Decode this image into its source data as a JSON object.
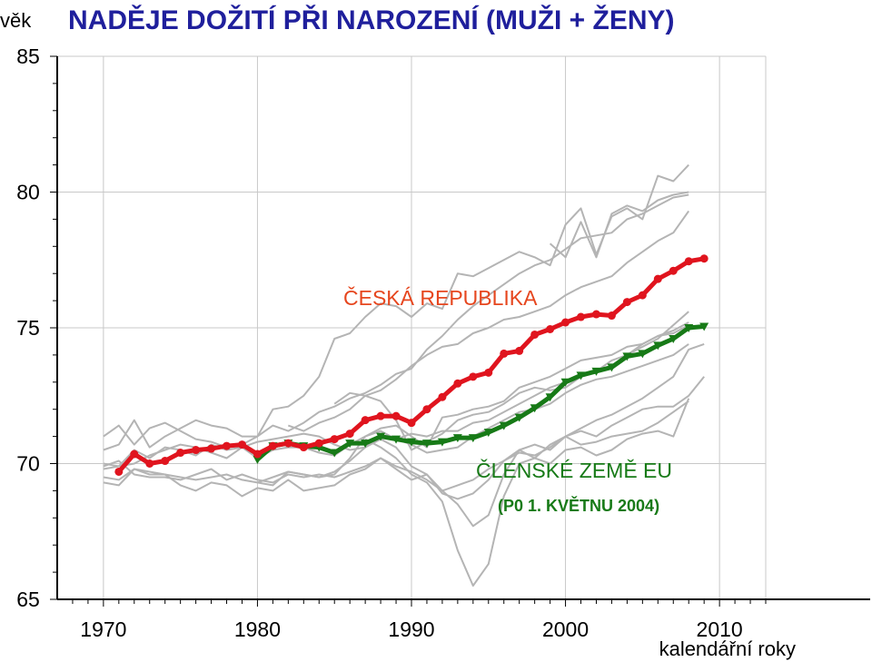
{
  "chart_data": {
    "type": "line",
    "title": "NADĚJE DOŽITÍ PŘI NAROZENÍ (MUŽI + ŽENY)",
    "ylabel": "věk",
    "xlabel": "kalendářní roky",
    "xlim": [
      1967,
      2013
    ],
    "ylim": [
      65,
      85
    ],
    "xticks": [
      1970,
      1980,
      1990,
      2000,
      2010
    ],
    "yticks": [
      65,
      70,
      75,
      80,
      85
    ],
    "grid": true,
    "colors": {
      "cr": "#e0141e",
      "eu": "#177a17",
      "other": "#b4b4b4",
      "title": "#1f1f9c",
      "cr_label": "#e6461e"
    },
    "annotations": {
      "cr_label": "ČESKÁ REPUBLIKA",
      "eu_label": "ČLENSKÉ ZEMĚ EU",
      "eu_sublabel": "(P0 1. KVĚTNU 2004)"
    },
    "series": [
      {
        "name": "ČESKÁ REPUBLIKA",
        "role": "cr",
        "x": [
          1971,
          1972,
          1973,
          1974,
          1975,
          1976,
          1977,
          1978,
          1979,
          1980,
          1981,
          1982,
          1983,
          1984,
          1985,
          1986,
          1987,
          1988,
          1989,
          1990,
          1991,
          1992,
          1993,
          1994,
          1995,
          1996,
          1997,
          1998,
          1999,
          2000,
          2001,
          2002,
          2003,
          2004,
          2005,
          2006,
          2007,
          2008,
          2009
        ],
        "y": [
          69.7,
          70.35,
          70.0,
          70.1,
          70.4,
          70.5,
          70.55,
          70.65,
          70.7,
          70.35,
          70.65,
          70.75,
          70.6,
          70.75,
          70.9,
          71.1,
          71.6,
          71.75,
          71.75,
          71.5,
          72.0,
          72.45,
          72.95,
          73.2,
          73.35,
          74.05,
          74.15,
          74.75,
          74.95,
          75.2,
          75.4,
          75.5,
          75.45,
          75.95,
          76.2,
          76.8,
          77.1,
          77.45,
          77.55
        ]
      },
      {
        "name": "ČLENSKÉ ZEMĚ EU",
        "role": "eu",
        "x": [
          1980,
          1981,
          1982,
          1983,
          1984,
          1985,
          1986,
          1987,
          1988,
          1989,
          1990,
          1991,
          1992,
          1993,
          1994,
          1995,
          1996,
          1997,
          1998,
          1999,
          2000,
          2001,
          2002,
          2003,
          2004,
          2005,
          2006,
          2007,
          2008,
          2009
        ],
        "y": [
          70.15,
          70.65,
          70.75,
          70.65,
          70.6,
          70.4,
          70.75,
          70.75,
          71.0,
          70.9,
          70.8,
          70.75,
          70.8,
          70.95,
          70.95,
          71.15,
          71.4,
          71.7,
          72.05,
          72.45,
          73.0,
          73.25,
          73.4,
          73.55,
          73.95,
          74.05,
          74.35,
          74.6,
          75.0,
          75.05
        ]
      },
      {
        "role": "other",
        "x": [
          1970,
          1971,
          1972,
          1973,
          1974,
          1975,
          1976,
          1977,
          1978,
          1979,
          1980,
          1981,
          1982,
          1983,
          1984,
          1985,
          1986,
          1987,
          1988,
          1989,
          1990,
          1991,
          1992,
          1993,
          1994,
          1995,
          1996,
          1997,
          1998,
          1999,
          2000,
          2001,
          2002,
          2003,
          2004,
          2005,
          2006,
          2007,
          2008
        ],
        "y": [
          70.5,
          70.7,
          71.6,
          70.6,
          71.0,
          71.3,
          71.6,
          71.4,
          71.3,
          71.0,
          71.0,
          71.4,
          71.2,
          71.5,
          71.9,
          72.1,
          72.4,
          72.6,
          72.9,
          73.3,
          73.5,
          74.2,
          74.7,
          75.3,
          75.8,
          76.2,
          76.6,
          77.0,
          77.3,
          77.5,
          77.9,
          78.3,
          78.4,
          78.5,
          79.0,
          79.2,
          79.5,
          79.8,
          79.9
        ]
      },
      {
        "role": "other",
        "x": [
          1970,
          1971,
          1972,
          1973,
          1974,
          1975,
          1976,
          1977,
          1978,
          1979,
          1980,
          1981,
          1982,
          1983,
          1984,
          1985,
          1986,
          1987,
          1988,
          1989,
          1990,
          1991,
          1992,
          1993,
          1994,
          1995,
          1996,
          1997,
          1998,
          1999,
          2000,
          2001,
          2002,
          2003,
          2004,
          2005,
          2006,
          2007,
          2008
        ],
        "y": [
          71.0,
          71.4,
          70.7,
          71.3,
          71.5,
          71.2,
          70.9,
          70.8,
          70.6,
          70.7,
          71.0,
          72.0,
          72.1,
          72.5,
          73.2,
          74.6,
          74.8,
          75.4,
          75.9,
          75.8,
          75.4,
          75.9,
          75.7,
          77.0,
          76.9,
          77.2,
          77.5,
          77.8,
          77.6,
          77.3,
          78.8,
          79.4,
          77.7,
          79.1,
          79.4,
          79.0,
          80.6,
          80.4,
          81.0
        ]
      },
      {
        "role": "other",
        "x": [
          1982,
          1983,
          1984,
          1985,
          1986,
          1987,
          1988,
          1989,
          1990,
          1991,
          1992,
          1993,
          1994,
          1995,
          1996,
          1997,
          1998,
          1999,
          2000,
          2001,
          2002,
          2003,
          2004,
          2005,
          2006,
          2007,
          2008
        ],
        "y": [
          71.4,
          71.2,
          71.5,
          71.7,
          72.0,
          72.5,
          72.7,
          73.1,
          73.6,
          74.0,
          74.3,
          74.4,
          74.8,
          75.0,
          75.3,
          75.4,
          75.6,
          75.8,
          76.2,
          76.5,
          76.7,
          76.9,
          77.4,
          77.8,
          78.2,
          78.5,
          79.3
        ]
      },
      {
        "role": "other",
        "x": [
          1999,
          2000,
          2001,
          2002,
          2003,
          2004,
          2005,
          2006,
          2007,
          2008
        ],
        "y": [
          78.1,
          77.6,
          78.9,
          77.6,
          79.2,
          79.5,
          79.3,
          79.7,
          79.9,
          80.0
        ]
      },
      {
        "role": "other",
        "x": [
          1970,
          1971,
          1972,
          1973,
          1974,
          1975,
          1976,
          1977,
          1978,
          1979,
          1980,
          1981,
          1982,
          1983,
          1984,
          1985,
          1986,
          1987,
          1988,
          1989,
          1990,
          1991,
          1992,
          1993,
          1994,
          1995,
          1996,
          1997,
          1998,
          1999,
          2000,
          2001,
          2002,
          2003,
          2004,
          2005,
          2006,
          2007,
          2008
        ],
        "y": [
          70.0,
          69.9,
          70.5,
          70.2,
          70.6,
          70.5,
          70.3,
          70.7,
          70.5,
          70.6,
          70.2,
          70.5,
          70.6,
          70.6,
          70.4,
          70.3,
          70.7,
          71.0,
          71.3,
          71.4,
          71.0,
          70.6,
          71.7,
          71.8,
          72.0,
          72.1,
          72.3,
          72.8,
          73.0,
          73.2,
          73.5,
          73.8,
          73.9,
          74.0,
          74.3,
          74.4,
          74.7,
          74.9,
          75.2
        ]
      },
      {
        "role": "other",
        "x": [
          1970,
          1971,
          1972,
          1973,
          1974,
          1975,
          1976,
          1977,
          1978,
          1979,
          1980,
          1981,
          1982,
          1983,
          1984,
          1985,
          1986,
          1987,
          1988,
          1989,
          1990,
          1991,
          1992,
          1993,
          1994,
          1995,
          1996,
          1997,
          1998,
          1999,
          2000,
          2001,
          2002,
          2003,
          2004,
          2005,
          2006,
          2007,
          2008
        ],
        "y": [
          69.8,
          69.9,
          70.0,
          70.3,
          70.5,
          70.7,
          70.6,
          70.4,
          70.2,
          70.6,
          70.8,
          70.9,
          71.0,
          71.1,
          71.0,
          70.7,
          70.5,
          70.6,
          71.0,
          70.9,
          71.1,
          71.0,
          71.2,
          71.2,
          71.5,
          71.6,
          71.9,
          72.2,
          72.5,
          72.8,
          73.0,
          73.2,
          73.4,
          73.6,
          74.0,
          74.3,
          74.6,
          75.1,
          75.6
        ]
      },
      {
        "role": "other",
        "x": [
          1985,
          1986,
          1987,
          1988,
          1989,
          1990,
          1991,
          1992,
          1993,
          1994,
          1995,
          1996,
          1997,
          1998,
          1999,
          2000,
          2001,
          2002,
          2003,
          2004,
          2005,
          2006,
          2007,
          2008
        ],
        "y": [
          72.2,
          72.6,
          72.5,
          72.3,
          71.6,
          70.5,
          70.8,
          71.1,
          71.6,
          71.8,
          71.9,
          72.2,
          72.6,
          72.8,
          72.7,
          72.8,
          73.2,
          73.4,
          73.8,
          74.0,
          74.4,
          74.7,
          74.8,
          75.1
        ]
      },
      {
        "role": "other",
        "x": [
          1970,
          1971,
          1972,
          1973,
          1974,
          1975,
          1976,
          1977,
          1978,
          1979,
          1980,
          1981,
          1982,
          1983,
          1984,
          1985,
          1986,
          1987,
          1988,
          1989,
          1990,
          1991,
          1992,
          1993,
          1994,
          1995,
          1996,
          1997,
          1998,
          1999,
          2000,
          2001,
          2002,
          2003,
          2004,
          2005,
          2006,
          2007,
          2008
        ],
        "y": [
          69.5,
          69.4,
          69.8,
          69.7,
          69.6,
          69.5,
          69.4,
          69.5,
          69.6,
          69.4,
          69.3,
          69.5,
          69.7,
          69.6,
          69.5,
          69.6,
          70.2,
          71.0,
          71.2,
          70.9,
          70.7,
          70.4,
          70.5,
          70.6,
          71.0,
          71.3,
          71.6,
          71.9,
          72.0,
          72.2,
          72.6,
          72.9,
          73.1,
          73.2,
          73.4,
          73.6,
          73.8,
          74.0,
          74.4
        ]
      },
      {
        "role": "other",
        "x": [
          1970,
          1971,
          1972,
          1973,
          1974,
          1975,
          1976,
          1977,
          1978,
          1979,
          1980,
          1981,
          1982,
          1983,
          1984,
          1985,
          1986,
          1987,
          1988,
          1989,
          1990,
          1991,
          1992,
          1993,
          1994,
          1995,
          1996,
          1997,
          1998,
          1999,
          2000,
          2001,
          2002,
          2003,
          2004,
          2005,
          2006,
          2007,
          2008,
          2009
        ],
        "y": [
          69.3,
          69.2,
          69.8,
          69.6,
          69.6,
          69.2,
          69.0,
          69.3,
          69.2,
          68.8,
          69.1,
          69.0,
          69.4,
          69.0,
          69.1,
          69.2,
          69.6,
          69.8,
          70.2,
          69.8,
          69.4,
          69.6,
          69.0,
          69.2,
          69.4,
          69.8,
          70.1,
          70.4,
          70.3,
          70.6,
          71.0,
          71.3,
          71.6,
          71.8,
          72.1,
          72.4,
          72.8,
          73.2,
          74.2,
          74.4
        ]
      },
      {
        "role": "other",
        "x": [
          1970,
          1971,
          1972,
          1973,
          1974,
          1975,
          1976,
          1977,
          1978,
          1979,
          1980,
          1981,
          1982,
          1983,
          1984,
          1985,
          1986,
          1987,
          1988,
          1989,
          1990,
          1991,
          1992,
          1993,
          1994,
          1995,
          1996,
          1997,
          1998,
          1999,
          2000,
          2001,
          2002,
          2003,
          2004,
          2005,
          2006,
          2007,
          2008,
          2009
        ],
        "y": [
          69.9,
          70.1,
          69.6,
          69.5,
          69.5,
          69.4,
          69.6,
          69.8,
          69.4,
          69.6,
          69.4,
          69.3,
          69.6,
          69.5,
          69.6,
          69.5,
          69.7,
          69.9,
          70.2,
          69.9,
          69.7,
          69.4,
          69.0,
          68.5,
          67.7,
          68.1,
          69.6,
          70.5,
          70.2,
          70.7,
          71.0,
          71.2,
          71.0,
          71.4,
          71.7,
          72.0,
          72.1,
          72.1,
          72.5,
          73.2
        ]
      },
      {
        "role": "other",
        "x": [
          1980,
          1981,
          1982,
          1983,
          1984,
          1985,
          1986,
          1987,
          1988,
          1989,
          1990,
          1991,
          1992,
          1993,
          1994,
          1995,
          1996,
          1997,
          1998,
          1999,
          2000,
          2001,
          2002,
          2003,
          2004,
          2005,
          2006,
          2007,
          2008
        ],
        "y": [
          69.3,
          69.2,
          69.7,
          69.6,
          69.5,
          69.7,
          70.1,
          70.6,
          70.9,
          70.6,
          69.9,
          69.6,
          68.9,
          68.7,
          68.9,
          69.4,
          70.1,
          70.5,
          70.7,
          70.5,
          71.0,
          70.7,
          70.8,
          71.0,
          71.1,
          71.2,
          71.5,
          71.9,
          72.3
        ]
      },
      {
        "role": "other",
        "x": [
          1987,
          1988,
          1989,
          1990,
          1991,
          1992,
          1993,
          1994,
          1995,
          1996,
          1997,
          1998,
          1999,
          2000,
          2001,
          2002,
          2003,
          2004,
          2005,
          2006,
          2007,
          2008
        ],
        "y": [
          70.9,
          70.6,
          70.2,
          69.6,
          69.3,
          68.6,
          66.8,
          65.5,
          66.3,
          68.8,
          70.0,
          70.2,
          70.0,
          70.5,
          70.6,
          70.3,
          70.5,
          70.9,
          71.1,
          71.2,
          71.0,
          72.4
        ]
      }
    ]
  }
}
